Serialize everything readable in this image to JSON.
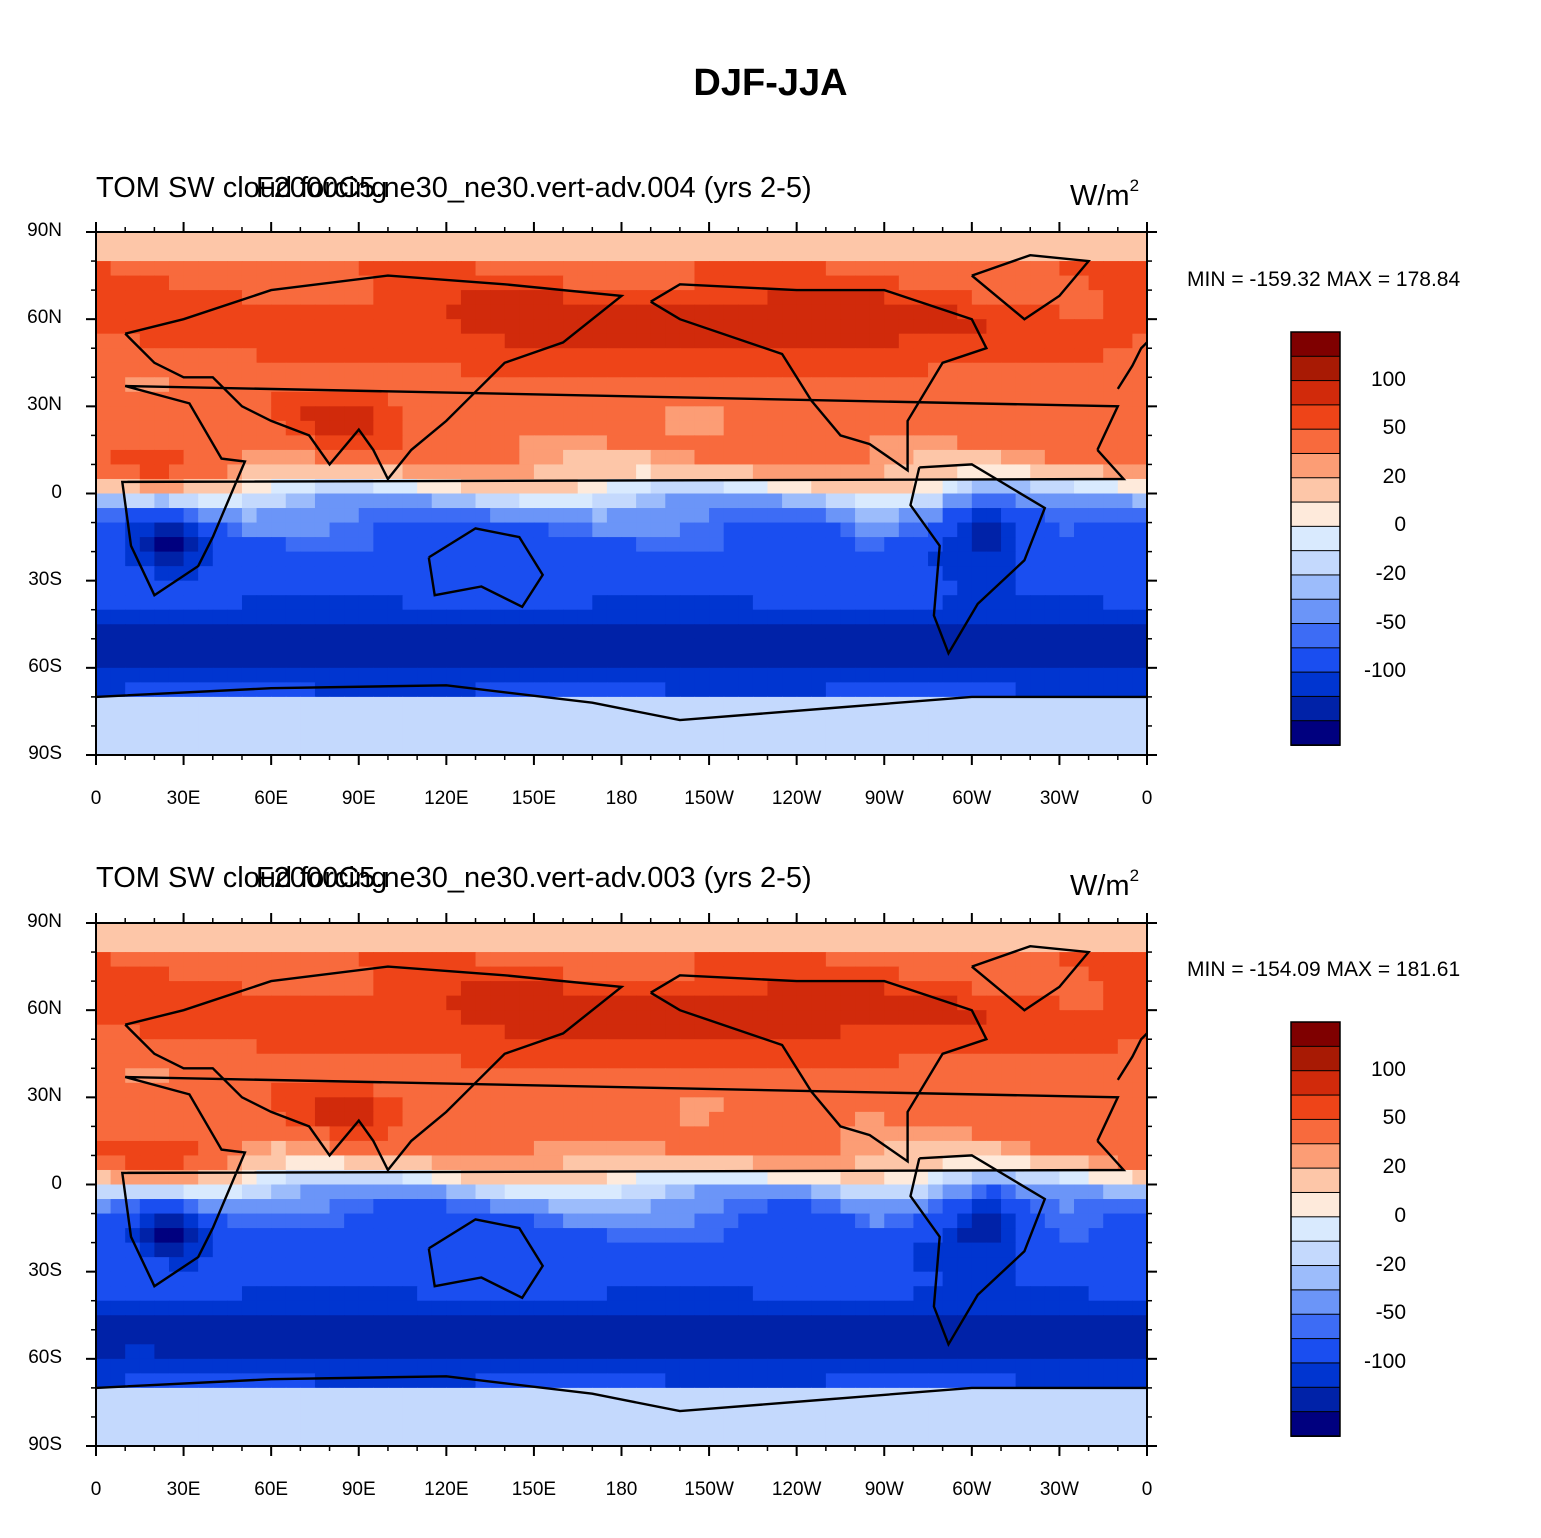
{
  "figure": {
    "title": "DJF-JJA"
  },
  "chart_data": [
    {
      "type": "heatmap",
      "left_title": "TOM SW cloud forcing",
      "center_title": "F2000C5.ne30_ne30.vert-adv.004 (yrs 2-5)",
      "units": "W/m",
      "units_sup": "2",
      "min_max_text": "MIN = -159.32 MAX = 178.84",
      "lat_ticks": [
        "90N",
        "60N",
        "30N",
        "0",
        "30S",
        "60S",
        "90S"
      ],
      "lon_ticks": [
        "0",
        "30E",
        "60E",
        "90E",
        "120E",
        "150E",
        "180",
        "150W",
        "120W",
        "90W",
        "60W",
        "30W",
        "0"
      ],
      "colorbar_labels": [
        "100",
        "50",
        "20",
        "0",
        "-20",
        "-50",
        "-100"
      ],
      "levels": [
        -120,
        -100,
        -80,
        -50,
        -40,
        -20,
        -10,
        0,
        10,
        20,
        40,
        50,
        80,
        100,
        120
      ]
    },
    {
      "type": "heatmap",
      "left_title": "TOM SW cloud forcing",
      "center_title": "F2000C5.ne30_ne30.vert-adv.003 (yrs 2-5)",
      "units": "W/m",
      "units_sup": "2",
      "min_max_text": "MIN = -154.09 MAX = 181.61",
      "lat_ticks": [
        "90N",
        "60N",
        "30N",
        "0",
        "30S",
        "60S",
        "90S"
      ],
      "lon_ticks": [
        "0",
        "30E",
        "60E",
        "90E",
        "120E",
        "150E",
        "180",
        "150W",
        "120W",
        "90W",
        "60W",
        "30W",
        "0"
      ],
      "colorbar_labels": [
        "100",
        "50",
        "20",
        "0",
        "-20",
        "-50",
        "-100"
      ],
      "levels": [
        -120,
        -100,
        -80,
        -50,
        -40,
        -20,
        -10,
        0,
        10,
        20,
        40,
        50,
        80,
        100,
        120
      ]
    }
  ],
  "colors": {
    "palette": [
      "#00007f",
      "#0022a8",
      "#0035d0",
      "#1a4ef0",
      "#3d6cf5",
      "#6b95f8",
      "#9cbcfb",
      "#c4d9fd",
      "#d9eafe",
      "#feeadb",
      "#fdc6a8",
      "#fc9d75",
      "#f86a3d",
      "#ee4418",
      "#d12a0b",
      "#a81a04",
      "#7f0000"
    ]
  }
}
